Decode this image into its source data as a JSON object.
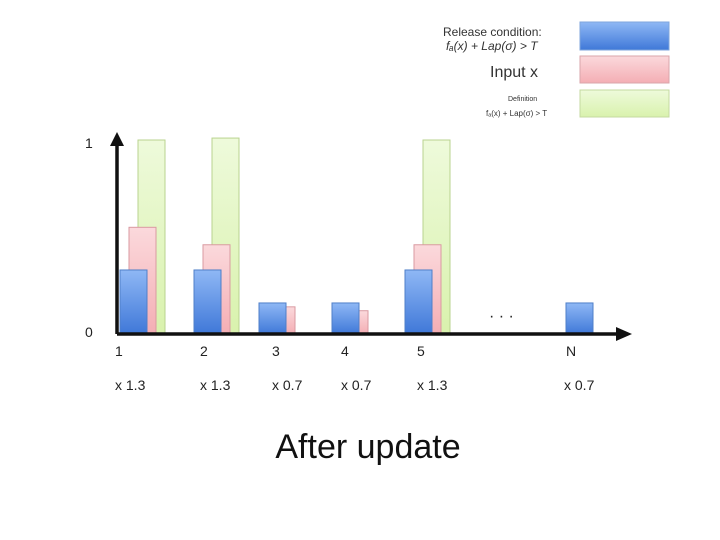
{
  "legend": {
    "release_condition_label": "Release condition:",
    "release_condition_formula": "fₐ(x) + Lap(σ) > T",
    "input_label": "Input x",
    "small_note_line1": "Definition",
    "small_note_line2": "fₐ(x) + Lap(σ) > T"
  },
  "colors": {
    "blue": "#5f95e8",
    "pink": "#f8c4c8",
    "green": "#e4f7c2",
    "axis": "#111111"
  },
  "axis": {
    "y_top_label": "1",
    "y_bottom_label": "0",
    "ellipsis": "· · ·"
  },
  "chart_data": {
    "type": "bar",
    "title": "After update",
    "ylim": [
      0,
      1
    ],
    "series": [
      {
        "name": "Release condition",
        "color": "blue"
      },
      {
        "name": "Input x",
        "color": "pink"
      },
      {
        "name": "Definition",
        "color": "green"
      }
    ],
    "groups": [
      {
        "label": "1",
        "multiplier": "x 1.3",
        "blue": 0.33,
        "pink": 0.55,
        "green": 1.0
      },
      {
        "label": "2",
        "multiplier": "x 1.3",
        "blue": 0.33,
        "pink": 0.46,
        "green": 1.01
      },
      {
        "label": "3",
        "multiplier": "x 0.7",
        "blue": 0.16,
        "pink": 0.14,
        "green": null
      },
      {
        "label": "4",
        "multiplier": "x 0.7",
        "blue": 0.16,
        "pink": 0.12,
        "green": null
      },
      {
        "label": "5",
        "multiplier": "x 1.3",
        "blue": 0.33,
        "pink": 0.46,
        "green": 1.0
      },
      {
        "label": "N",
        "multiplier": "x 0.7",
        "blue": 0.16,
        "pink": null,
        "green": null
      }
    ]
  }
}
